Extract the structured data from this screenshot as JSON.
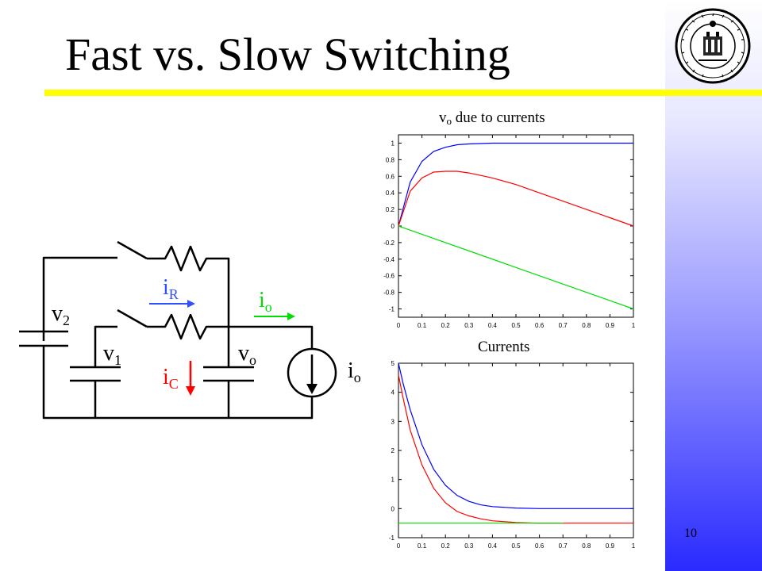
{
  "slide": {
    "title": "Fast vs. Slow Switching",
    "page_number": "10",
    "colors": {
      "accent_bar": "#ffff00",
      "side_gradient_bottom": "#2a2aff"
    }
  },
  "logo": {
    "icon": "university-seal-icon"
  },
  "circuit": {
    "labels": {
      "v2": {
        "main": "v",
        "sub": "2"
      },
      "v1": {
        "main": "v",
        "sub": "1"
      },
      "vo": {
        "main": "v",
        "sub": "o"
      },
      "iR": {
        "main": "i",
        "sub": "R"
      },
      "iC": {
        "main": "i",
        "sub": "C"
      },
      "io_arrow": {
        "main": "i",
        "sub": "o"
      },
      "io_source": {
        "main": "i",
        "sub": "o"
      }
    },
    "colors": {
      "iR": "#3050ff",
      "iC": "#ff0000",
      "io": "#00dd00",
      "wire": "#000000"
    }
  },
  "chart_data": [
    {
      "type": "line",
      "title_main": "v",
      "title_sub": "o",
      "title_rest": " due to currents",
      "xlim": [
        0,
        1
      ],
      "ylim": [
        -1.1,
        1.1
      ],
      "x_ticks": [
        0,
        0.1,
        0.2,
        0.3,
        0.4,
        0.5,
        0.6,
        0.7,
        0.8,
        0.9,
        1
      ],
      "x_tick_labels": [
        "0",
        "0.1",
        "0.2",
        "0.3",
        "0.4",
        "0.5",
        "0.6",
        "0.7",
        "0.8",
        "0.9",
        "1"
      ],
      "y_ticks": [
        -1,
        -0.8,
        -0.6,
        -0.4,
        -0.2,
        0,
        0.2,
        0.4,
        0.6,
        0.8,
        1
      ],
      "y_tick_labels": [
        "-1",
        "-0.8",
        "-0.6",
        "-0.4",
        "-0.2",
        "0",
        "0.2",
        "0.4",
        "0.6",
        "0.8",
        "1"
      ],
      "series": [
        {
          "color": "#0000ff",
          "x": [
            0,
            0.05,
            0.1,
            0.15,
            0.2,
            0.25,
            0.3,
            0.35,
            0.4,
            0.5,
            0.6,
            0.7,
            0.8,
            0.9,
            1
          ],
          "y": [
            0,
            0.53,
            0.78,
            0.9,
            0.95,
            0.98,
            0.99,
            0.995,
            1,
            1,
            1,
            1,
            1,
            1,
            1
          ]
        },
        {
          "color": "#ff0000",
          "x": [
            0,
            0.05,
            0.1,
            0.15,
            0.2,
            0.25,
            0.3,
            0.35,
            0.4,
            0.5,
            0.6,
            0.7,
            0.8,
            0.9,
            1
          ],
          "y": [
            0,
            0.42,
            0.58,
            0.65,
            0.66,
            0.66,
            0.64,
            0.61,
            0.58,
            0.5,
            0.4,
            0.3,
            0.2,
            0.1,
            0
          ]
        },
        {
          "color": "#00dd00",
          "x": [
            0,
            1
          ],
          "y": [
            0,
            -1
          ]
        }
      ]
    },
    {
      "type": "line",
      "title_main": "Currents",
      "xlim": [
        0,
        1
      ],
      "ylim": [
        -1,
        5
      ],
      "x_ticks": [
        0,
        0.1,
        0.2,
        0.3,
        0.4,
        0.5,
        0.6,
        0.7,
        0.8,
        0.9,
        1
      ],
      "x_tick_labels": [
        "0",
        "0.1",
        "0.2",
        "0.3",
        "0.4",
        "0.5",
        "0.6",
        "0.7",
        "0.8",
        "0.9",
        "1"
      ],
      "y_ticks": [
        -1,
        0,
        1,
        2,
        3,
        4,
        5
      ],
      "y_tick_labels": [
        "-1",
        "0",
        "1",
        "2",
        "3",
        "4",
        "5"
      ],
      "series": [
        {
          "color": "#0000ff",
          "x": [
            0,
            0.02,
            0.05,
            0.1,
            0.15,
            0.2,
            0.25,
            0.3,
            0.35,
            0.4,
            0.5,
            0.6,
            0.8,
            1
          ],
          "y": [
            5,
            4.3,
            3.4,
            2.2,
            1.35,
            0.8,
            0.45,
            0.25,
            0.13,
            0.07,
            0.02,
            0,
            0,
            0
          ]
        },
        {
          "color": "#ff0000",
          "x": [
            0,
            0.02,
            0.05,
            0.1,
            0.15,
            0.2,
            0.25,
            0.3,
            0.35,
            0.4,
            0.5,
            0.6,
            0.8,
            1
          ],
          "y": [
            4.6,
            3.8,
            2.7,
            1.5,
            0.7,
            0.2,
            -0.1,
            -0.25,
            -0.35,
            -0.42,
            -0.48,
            -0.5,
            -0.5,
            -0.5
          ]
        },
        {
          "color": "#00dd00",
          "x": [
            0,
            0.7
          ],
          "y": [
            -0.5,
            -0.5
          ]
        }
      ]
    }
  ]
}
